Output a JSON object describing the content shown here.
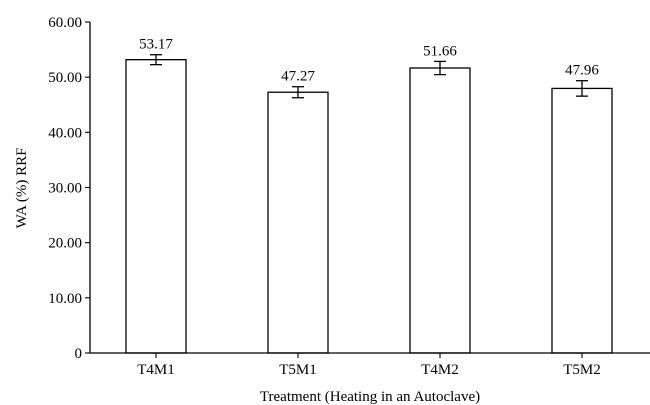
{
  "chart_data": {
    "type": "bar",
    "title": "",
    "xlabel": "Treatment (Heating in an Autoclave)",
    "ylabel": "WA (%) RRF",
    "categories": [
      "T4M1",
      "T5M1",
      "T4M2",
      "T5M2"
    ],
    "values": [
      53.17,
      47.27,
      51.66,
      47.96
    ],
    "value_labels": [
      "53.17",
      "47.27",
      "51.66",
      "47.96"
    ],
    "errors": [
      0.9,
      1.0,
      1.2,
      1.4
    ],
    "ylim": [
      0,
      60
    ],
    "yticks": [
      0,
      10,
      20,
      30,
      40,
      50,
      60
    ],
    "ytick_labels": [
      "0",
      "10.00",
      "20.00",
      "30.00",
      "40.00",
      "50.00",
      "60.00"
    ],
    "grid": false,
    "legend": "none",
    "bar_fill": "#ffffff",
    "bar_stroke": "#000000"
  }
}
